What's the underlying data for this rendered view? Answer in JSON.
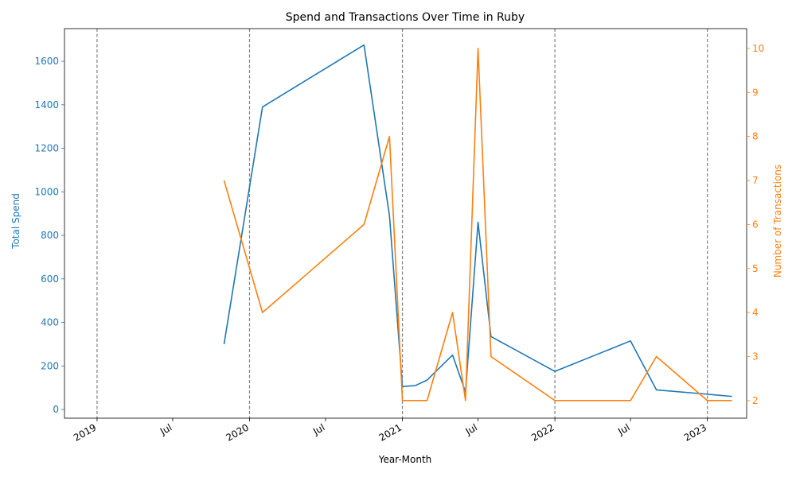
{
  "chart_data": {
    "type": "line",
    "title": "Spend and Transactions Over Time in Ruby",
    "xlabel": "Year-Month",
    "ylabel_left": "Total Spend",
    "ylabel_right": "Number of Transactions",
    "x_range": [
      "2018-10-15",
      "2023-04-05"
    ],
    "ylim_left": [
      -40,
      1750
    ],
    "ylim_right": [
      1.6,
      10.45
    ],
    "x_ticks": [
      {
        "date": "2019-01-01",
        "label": "2019"
      },
      {
        "date": "2019-07-01",
        "label": "Jul"
      },
      {
        "date": "2020-01-01",
        "label": "2020"
      },
      {
        "date": "2020-07-01",
        "label": "Jul"
      },
      {
        "date": "2021-01-01",
        "label": "2021"
      },
      {
        "date": "2021-07-01",
        "label": "Jul"
      },
      {
        "date": "2022-01-01",
        "label": "2022"
      },
      {
        "date": "2022-07-01",
        "label": "Jul"
      },
      {
        "date": "2023-01-01",
        "label": "2023"
      }
    ],
    "y_ticks_left": [
      0,
      200,
      400,
      600,
      800,
      1000,
      1200,
      1400,
      1600
    ],
    "y_ticks_right": [
      2,
      3,
      4,
      5,
      6,
      7,
      8,
      9,
      10
    ],
    "year_lines": [
      "2019-01-01",
      "2020-01-01",
      "2021-01-01",
      "2022-01-01",
      "2023-01-01"
    ],
    "colors": {
      "spend": "#1f77b4",
      "transactions": "#ff7f0e",
      "year_lines": "#808080"
    },
    "grid": false,
    "series": [
      {
        "axis": "left",
        "color": "#1f77b4",
        "points": [
          {
            "x": "2019-11-01",
            "y": 300
          },
          {
            "x": "2020-02-01",
            "y": 1390
          },
          {
            "x": "2020-10-01",
            "y": 1675
          },
          {
            "x": "2020-12-01",
            "y": 890
          },
          {
            "x": "2021-01-01",
            "y": 105
          },
          {
            "x": "2021-02-01",
            "y": 110
          },
          {
            "x": "2021-03-01",
            "y": 135
          },
          {
            "x": "2021-05-01",
            "y": 250
          },
          {
            "x": "2021-06-01",
            "y": 80
          },
          {
            "x": "2021-07-01",
            "y": 860
          },
          {
            "x": "2021-08-01",
            "y": 335
          },
          {
            "x": "2022-01-01",
            "y": 175
          },
          {
            "x": "2022-07-01",
            "y": 315
          },
          {
            "x": "2022-09-01",
            "y": 90
          },
          {
            "x": "2023-01-01",
            "y": 70
          },
          {
            "x": "2023-03-01",
            "y": 60
          }
        ]
      },
      {
        "axis": "right",
        "color": "#ff7f0e",
        "points": [
          {
            "x": "2019-11-01",
            "y": 7
          },
          {
            "x": "2020-02-01",
            "y": 4
          },
          {
            "x": "2020-10-01",
            "y": 6
          },
          {
            "x": "2020-12-01",
            "y": 8
          },
          {
            "x": "2021-01-01",
            "y": 2
          },
          {
            "x": "2021-02-01",
            "y": 2
          },
          {
            "x": "2021-03-01",
            "y": 2
          },
          {
            "x": "2021-05-01",
            "y": 4
          },
          {
            "x": "2021-06-01",
            "y": 2
          },
          {
            "x": "2021-07-01",
            "y": 10
          },
          {
            "x": "2021-08-01",
            "y": 3
          },
          {
            "x": "2022-01-01",
            "y": 2
          },
          {
            "x": "2022-07-01",
            "y": 2
          },
          {
            "x": "2022-09-01",
            "y": 3
          },
          {
            "x": "2023-01-01",
            "y": 2
          },
          {
            "x": "2023-03-01",
            "y": 2
          }
        ]
      }
    ]
  }
}
